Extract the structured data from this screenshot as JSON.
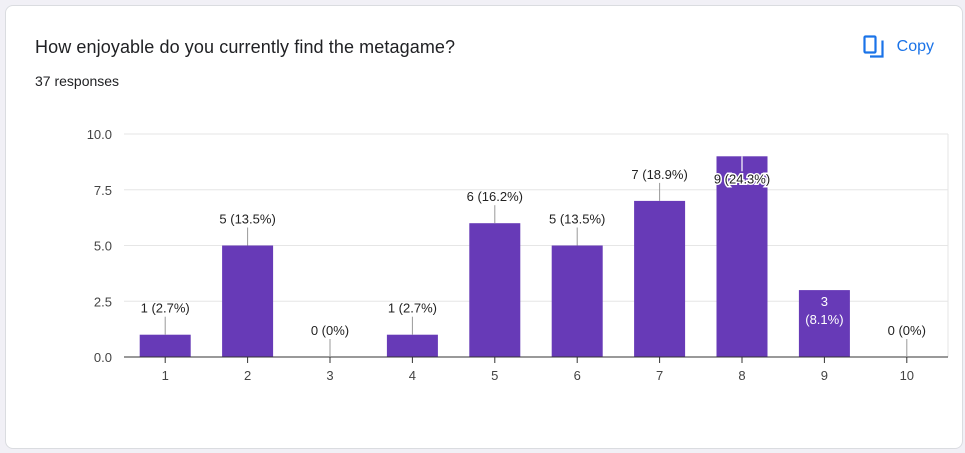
{
  "question": {
    "title": "How enjoyable do you currently find the metagame?",
    "responses_text": "37 responses"
  },
  "copy_button": {
    "label": "Copy",
    "icon": "copy-icon",
    "color": "#1a73e8"
  },
  "chart_data": {
    "type": "bar",
    "categories": [
      "1",
      "2",
      "3",
      "4",
      "5",
      "6",
      "7",
      "8",
      "9",
      "10"
    ],
    "values": [
      1,
      5,
      0,
      1,
      6,
      5,
      7,
      9,
      3,
      0
    ],
    "data_labels": [
      "1 (2.7%)",
      "5 (13.5%)",
      "0 (0%)",
      "1 (2.7%)",
      "6 (16.2%)",
      "5 (13.5%)",
      "7 (18.9%)",
      "9 (24.3%)",
      "3 (8.1%)",
      "0 (0%)"
    ],
    "ylim": [
      0,
      10
    ],
    "yticks": [
      "0.0",
      "2.5",
      "5.0",
      "7.5",
      "10.0"
    ],
    "ytick_values": [
      0,
      2.5,
      5,
      7.5,
      10
    ],
    "xlabel": "",
    "ylabel": "",
    "grid": true,
    "bar_color": "#673ab7"
  }
}
